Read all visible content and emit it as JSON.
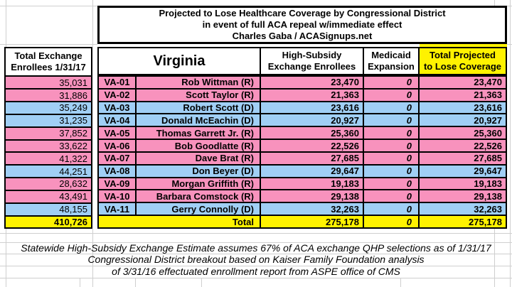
{
  "colors": {
    "republican_row_pink": "#F892BD",
    "democrat_row_blue": "#A0CFF5",
    "highlight_yellow": "#FFF200",
    "border_black": "#000000",
    "gridline_gray": "#CFCFCF"
  },
  "left_table": {
    "header_line1": "Total Exchange",
    "header_line2": "Enrollees 1/31/17",
    "total_value": "410,726"
  },
  "main_table": {
    "title_line1": "Projected to Lose Healthcare Coverage by Congressional District",
    "title_line2": "in event of full ACA repeal w/immediate effect",
    "title_line3": "Charles Gaba / ACASignups.net",
    "state_header": "Virginia",
    "col_headers": {
      "enrollees_line1": "High-Subsidy",
      "enrollees_line2": "Exchange Enrollees",
      "medicaid_line1": "Medicaid",
      "medicaid_line2": "Expansion",
      "total_line1": "Total Projected",
      "total_line2": "to Lose Coverage"
    },
    "total_row": {
      "label": "Total",
      "high_subsidy": "275,178",
      "medicaid": "0",
      "total_lose": "275,178"
    }
  },
  "rows": [
    {
      "district": "VA-01",
      "rep_name": "Rob Wittman (R)",
      "party": "R",
      "total_exchange": "35,031",
      "high_subsidy": "23,470",
      "medicaid": "0",
      "total_lose": "23,470"
    },
    {
      "district": "VA-02",
      "rep_name": "Scott Taylor (R)",
      "party": "R",
      "total_exchange": "31,886",
      "high_subsidy": "21,363",
      "medicaid": "0",
      "total_lose": "21,363"
    },
    {
      "district": "VA-03",
      "rep_name": "Robert Scott (D)",
      "party": "D",
      "total_exchange": "35,249",
      "high_subsidy": "23,616",
      "medicaid": "0",
      "total_lose": "23,616"
    },
    {
      "district": "VA-04",
      "rep_name": "Donald McEachin (D)",
      "party": "D",
      "total_exchange": "31,235",
      "high_subsidy": "20,927",
      "medicaid": "0",
      "total_lose": "20,927"
    },
    {
      "district": "VA-05",
      "rep_name": "Thomas Garrett Jr. (R)",
      "party": "R",
      "total_exchange": "37,852",
      "high_subsidy": "25,360",
      "medicaid": "0",
      "total_lose": "25,360"
    },
    {
      "district": "VA-06",
      "rep_name": "Bob Goodlatte (R)",
      "party": "R",
      "total_exchange": "33,622",
      "high_subsidy": "22,526",
      "medicaid": "0",
      "total_lose": "22,526"
    },
    {
      "district": "VA-07",
      "rep_name": "Dave Brat (R)",
      "party": "R",
      "total_exchange": "41,322",
      "high_subsidy": "27,685",
      "medicaid": "0",
      "total_lose": "27,685"
    },
    {
      "district": "VA-08",
      "rep_name": "Don Beyer (D)",
      "party": "D",
      "total_exchange": "44,251",
      "high_subsidy": "29,647",
      "medicaid": "0",
      "total_lose": "29,647"
    },
    {
      "district": "VA-09",
      "rep_name": "Morgan Griffith (R)",
      "party": "R",
      "total_exchange": "28,632",
      "high_subsidy": "19,183",
      "medicaid": "0",
      "total_lose": "19,183"
    },
    {
      "district": "VA-10",
      "rep_name": "Barbara Comstock (R)",
      "party": "R",
      "total_exchange": "43,491",
      "high_subsidy": "29,138",
      "medicaid": "0",
      "total_lose": "29,138"
    },
    {
      "district": "VA-11",
      "rep_name": "Gerry Connolly (D)",
      "party": "D",
      "total_exchange": "48,155",
      "high_subsidy": "32,263",
      "medicaid": "0",
      "total_lose": "32,263"
    }
  ],
  "footer": {
    "line1": "Statewide High-Subsidy Exchange Estimate assumes 67% of ACA exchange QHP selections as of 1/31/17",
    "line2": "Congressional District breakout based on Kaiser Family Foundation analysis",
    "line3": "of 3/31/16 effectuated enrollment report from ASPE office of CMS"
  }
}
